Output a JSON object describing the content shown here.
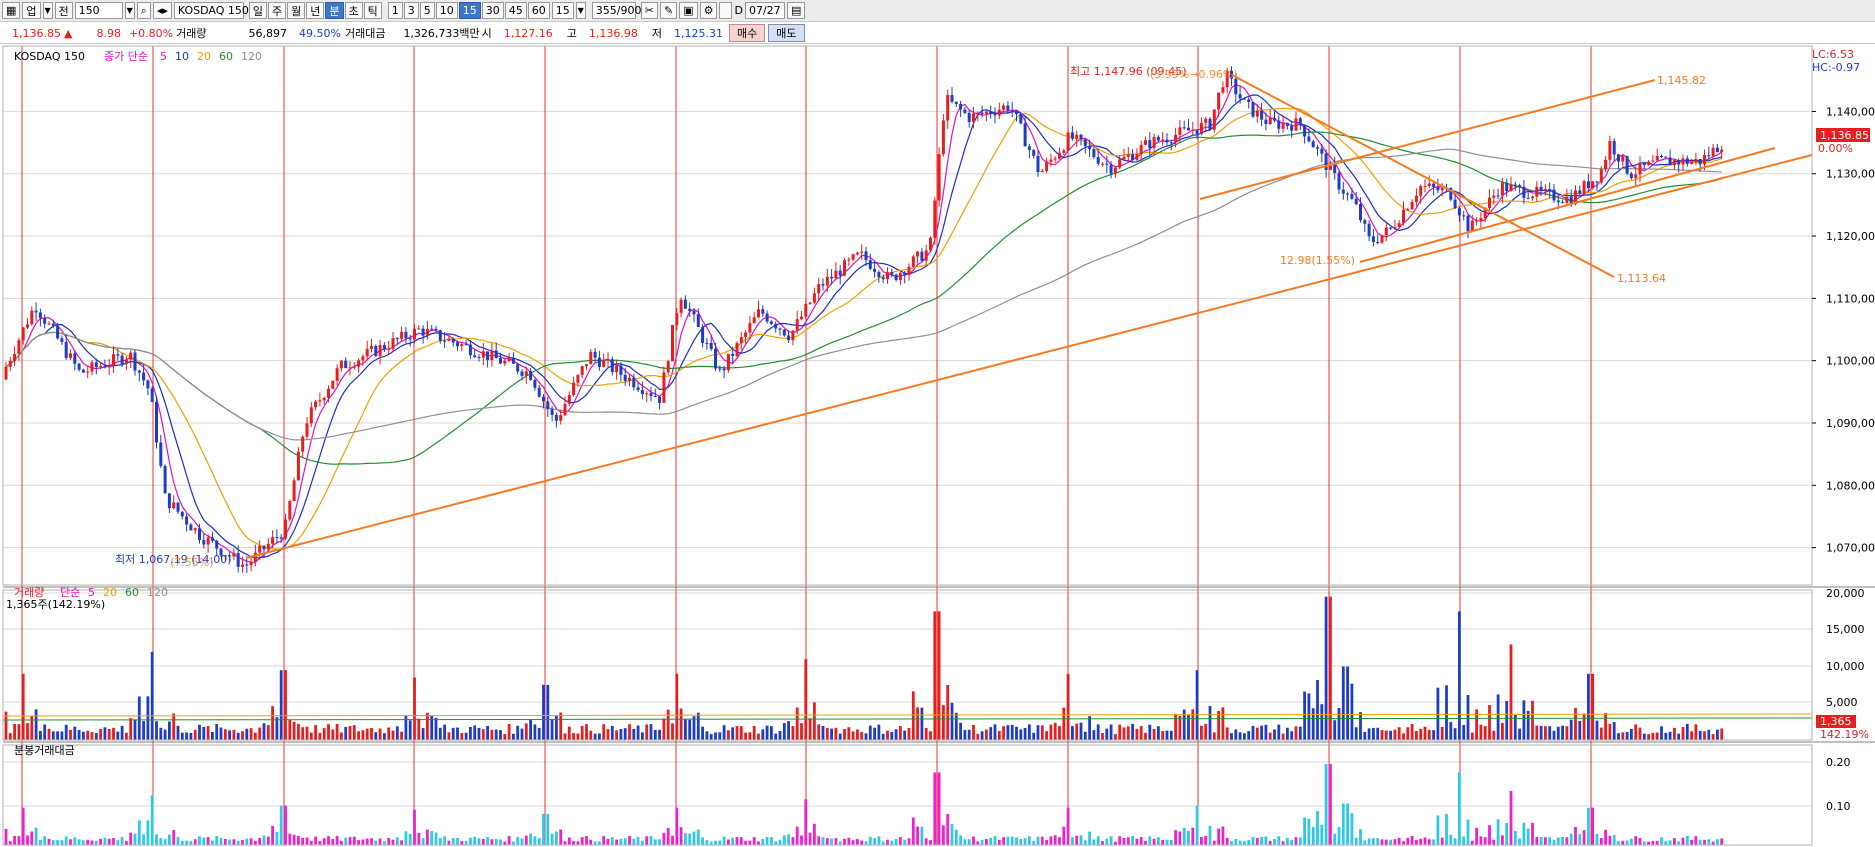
{
  "toolbar": {
    "market": "업",
    "jeon": "전",
    "code": "150",
    "name": "KOSDAQ 150",
    "periods": [
      "일",
      "주",
      "월",
      "년",
      "분",
      "초",
      "틱"
    ],
    "selected_period": "분",
    "intervals": [
      "1",
      "3",
      "5",
      "10",
      "15",
      "30",
      "45",
      "60"
    ],
    "selected_interval": "15",
    "interval_value": "15",
    "count": "355/900",
    "d_label": "D",
    "date": "07/27"
  },
  "info": {
    "price": "1,136.85",
    "arrow": "▲",
    "change": "8.98",
    "rate": "+0.80%",
    "volume_label": "거래량",
    "volume": "56,897",
    "volume_rate": "49.50%",
    "amount_label": "거래대금",
    "amount": "1,326,733백만",
    "open_label": "시",
    "open": "1,127.16",
    "high_label": "고",
    "high": "1,136.98",
    "low_label": "저",
    "low": "1,125.31",
    "buy": "매수",
    "sell": "매도"
  },
  "chart": {
    "legend_name": "KOSDAQ 150",
    "legend_ma_label": "종가 단순",
    "ma_periods": [
      "5",
      "10",
      "20",
      "60",
      "120"
    ],
    "colors": {
      "up": "#e81e1e",
      "down": "#1e3cc8",
      "ma5": "#e010c0",
      "ma10": "#1a2ed0",
      "ma20": "#f0a000",
      "ma60": "#209030",
      "ma120": "#909090",
      "trend": "#f57a20",
      "vline": "#e83030",
      "grid": "#d8d8d8"
    },
    "lc": "LC:6.53",
    "hc": "HC:-0.97",
    "yticks": [
      "1,140,00",
      "1,130,00",
      "1,120,00",
      "1,110,00",
      "1,100,00",
      "1,090,00",
      "1,080,00",
      "1,070,00"
    ],
    "current_tag": "1,136.85",
    "zero_tag": "0.00%",
    "high_note": "최고 1,147.96 (09:45)",
    "high_note_overlay": "(3.99%→0.96%)",
    "low_note": "최저 1,067.19 (14:00)",
    "low_note_overlay": "(7.55%)",
    "trend_label_top": "1,145.82",
    "trend_label_down": "1,113.64",
    "swing_label": "12.98(1.55%)"
  },
  "volume_panel": {
    "legend": "거래량",
    "legend_ma_label": "단순",
    "ma_periods": [
      "5",
      "20",
      "60",
      "120"
    ],
    "info": "1,365주(142.19%)",
    "yticks": [
      "20,000",
      "15,000",
      "10,000",
      "5,000"
    ],
    "current_tag": "1,365",
    "current_pct": "142.19%"
  },
  "amount_panel": {
    "legend": "분봉거래대금",
    "yticks": [
      "0.20",
      "0.10"
    ]
  }
}
